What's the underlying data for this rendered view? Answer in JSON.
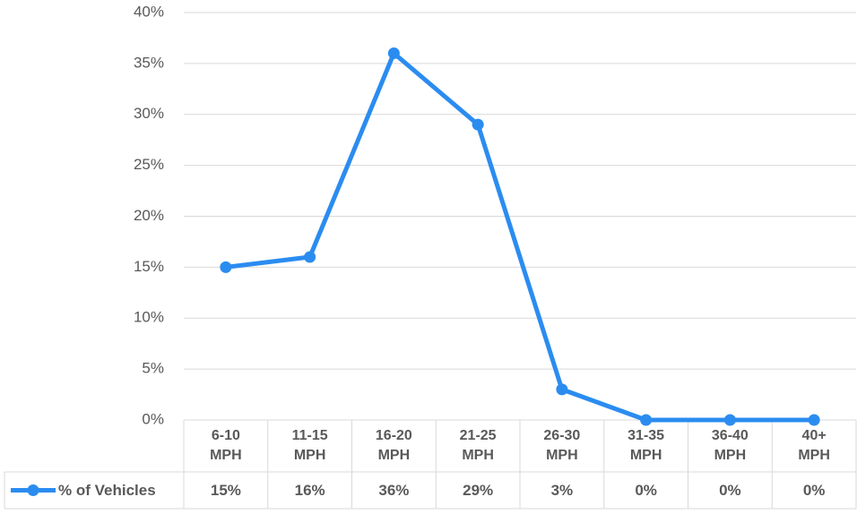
{
  "chart_data": {
    "type": "line",
    "categories": [
      "6-10 MPH",
      "11-15 MPH",
      "16-20 MPH",
      "21-25 MPH",
      "26-30 MPH",
      "31-35 MPH",
      "36-40 MPH",
      "40+ MPH"
    ],
    "series": [
      {
        "name": "% of Vehicles",
        "color": "#2b8cf0",
        "values": [
          15,
          16,
          36,
          29,
          3,
          0,
          0,
          0
        ],
        "value_labels": [
          "15%",
          "16%",
          "36%",
          "29%",
          "3%",
          "0%",
          "0%",
          "0%"
        ]
      }
    ],
    "ylim": [
      0,
      40
    ],
    "yticks": [
      {
        "value": 0,
        "label": "0%"
      },
      {
        "value": 5,
        "label": "5%"
      },
      {
        "value": 10,
        "label": "10%"
      },
      {
        "value": 15,
        "label": "15%"
      },
      {
        "value": 20,
        "label": "20%"
      },
      {
        "value": 25,
        "label": "25%"
      },
      {
        "value": 30,
        "label": "30%"
      },
      {
        "value": 35,
        "label": "35%"
      },
      {
        "value": 40,
        "label": "40%"
      }
    ],
    "grid": true
  }
}
